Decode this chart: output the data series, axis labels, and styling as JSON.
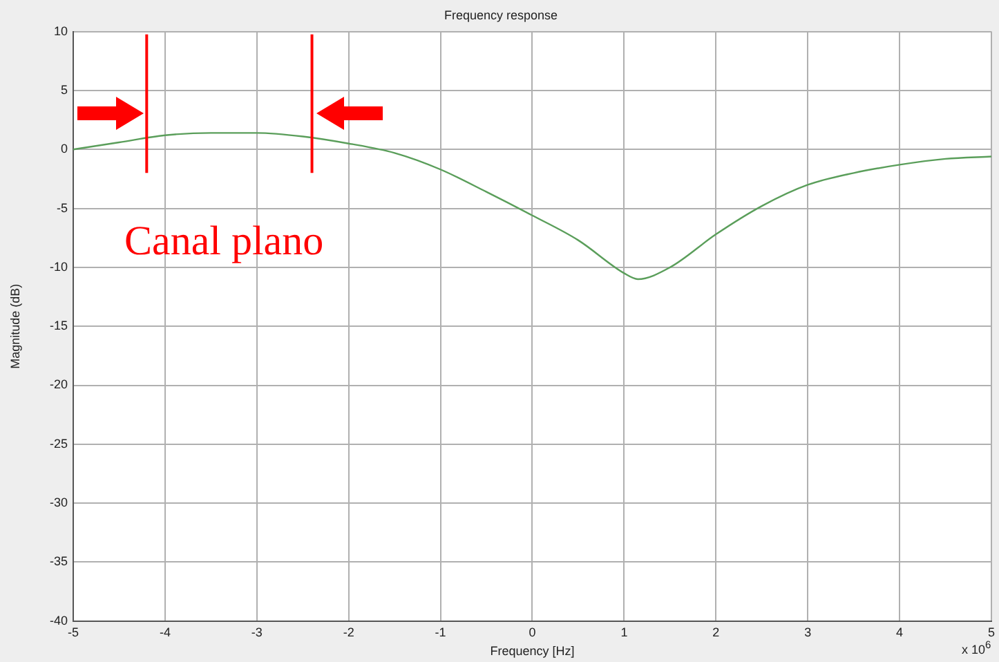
{
  "chart_data": {
    "type": "line",
    "title": "Frequency response",
    "xlabel": "Frequency [Hz]",
    "ylabel": "Magnitude (dB)",
    "x": [
      -5,
      -4.5,
      -4,
      -3.5,
      -3,
      -2.5,
      -2,
      -1.5,
      -1,
      -0.5,
      0,
      0.5,
      1,
      1.15,
      1.5,
      2,
      2.5,
      3,
      3.5,
      4,
      4.5,
      5
    ],
    "series": [
      {
        "color": "#5a9e5a",
        "values": [
          0,
          0.6,
          1.2,
          1.4,
          1.4,
          1.1,
          0.5,
          -0.3,
          -1.7,
          -3.6,
          -5.6,
          -7.7,
          -10.5,
          -11,
          -10,
          -7.2,
          -4.8,
          -3,
          -2,
          -1.3,
          -0.8,
          -0.6
        ]
      }
    ],
    "xlim": [
      -5,
      5
    ],
    "xticks": [
      -5,
      -4,
      -3,
      -2,
      -1,
      0,
      1,
      2,
      3,
      4,
      5
    ],
    "ylim": [
      -40,
      10
    ],
    "yticks": [
      -40,
      -35,
      -30,
      -25,
      -20,
      -15,
      -10,
      -5,
      0,
      5,
      10
    ],
    "ref_lines": [
      {
        "axis": "x",
        "value": -4.2,
        "color": "#ff0000"
      },
      {
        "axis": "x",
        "value": -2.4,
        "color": "#ff0000"
      }
    ],
    "annotations": [
      "Canal plano",
      "x 10$^{6}$"
    ],
    "grid": true,
    "legend": false,
    "marker": "none",
    "line_style": "solid"
  }
}
